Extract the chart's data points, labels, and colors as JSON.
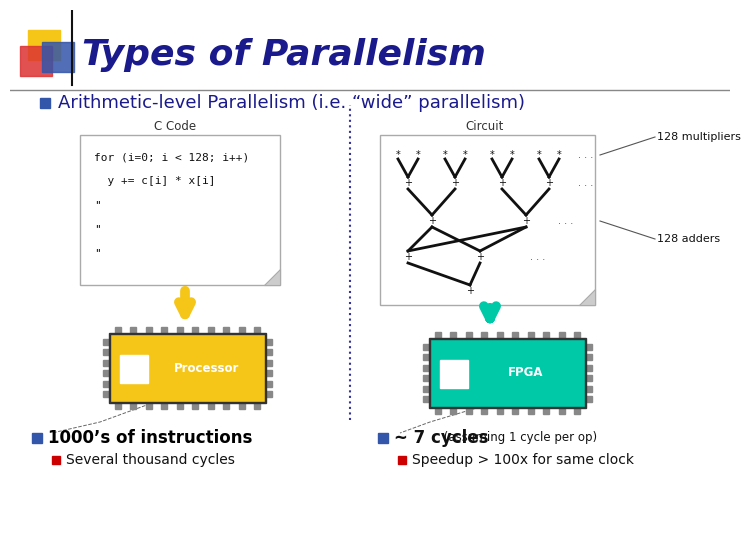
{
  "title": "Types of Parallelism",
  "title_color": "#1a1a8c",
  "title_fontsize": 26,
  "bg_color": "#ffffff",
  "bullet1": "Arithmetic-level Parallelism (i.e. “wide” parallelism)",
  "bullet1_color": "#1a1a8c",
  "bullet1_fontsize": 13,
  "bullet1_marker_color": "#3355aa",
  "c_code_label": "C Code",
  "c_code_lines": [
    "for (i=0; i < 128; i++)",
    "  y += c[i] * x[i]",
    "\"",
    "\"",
    "\""
  ],
  "circuit_label": "Circuit",
  "multipliers_label": "128 multipliers",
  "adders_label": "128 adders",
  "processor_label": "Processor",
  "fpga_label": "FPGA",
  "processor_color": "#f5c518",
  "fpga_color": "#00c9a7",
  "chip_pin_color": "#888888",
  "chip_border_color": "#444444",
  "arrow_left_color": "#f5c518",
  "arrow_right_color": "#00c9a7",
  "bullet2": "1000’s of instructions",
  "bullet2_color": "#000000",
  "bullet2_marker_color": "#3355aa",
  "sub_bullet2": "Several thousand cycles",
  "sub_bullet2_marker_color": "#cc0000",
  "bullet3": "~ 7 cycles",
  "bullet3_suffix": " (assuming 1 cycle per op)",
  "bullet3_marker_color": "#3355aa",
  "sub_bullet3": "Speedup > 100x for same clock",
  "sub_bullet3_marker_color": "#cc0000",
  "header_bar_color": "#888888",
  "divider_color": "#333399",
  "logo_colors": [
    "#f5c518",
    "#dd3333",
    "#3355aa"
  ]
}
